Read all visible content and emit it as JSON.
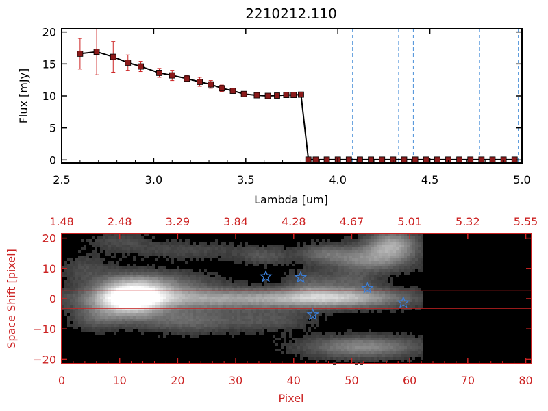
{
  "chart_data": [
    {
      "type": "line",
      "title": "2210212.110",
      "xlabel": "Lambda [um]",
      "ylabel": "Flux [mJy]",
      "xlim": [
        2.5,
        5.0
      ],
      "ylim": [
        -0.5,
        20.5
      ],
      "xticks": [
        2.5,
        3.0,
        3.5,
        4.0,
        4.5,
        5.0
      ],
      "xtick_labels": [
        "2.5",
        "3.0",
        "3.5",
        "4.0",
        "4.5",
        "5.0"
      ],
      "yticks": [
        0,
        5,
        10,
        15,
        20
      ],
      "ytick_labels": [
        "0",
        "5",
        "10",
        "15",
        "20"
      ],
      "grid": false,
      "series": [
        {
          "color": "#000000",
          "marker_color": "#8b1a1a",
          "error_color": "#cc2222",
          "x": [
            2.6,
            2.69,
            2.78,
            2.86,
            2.93,
            3.03,
            3.1,
            3.18,
            3.25,
            3.31,
            3.37,
            3.43,
            3.49,
            3.56,
            3.62,
            3.67,
            3.72,
            3.76,
            3.8,
            3.84,
            3.88,
            3.94,
            4.0,
            4.06,
            4.12,
            4.18,
            4.24,
            4.3,
            4.36,
            4.42,
            4.48,
            4.54,
            4.6,
            4.66,
            4.72,
            4.78,
            4.84,
            4.9,
            4.96
          ],
          "y": [
            16.6,
            16.9,
            16.1,
            15.2,
            14.6,
            13.6,
            13.2,
            12.7,
            12.2,
            11.8,
            11.2,
            10.8,
            10.3,
            10.1,
            10.0,
            10.05,
            10.15,
            10.15,
            10.2,
            0.05,
            0.05,
            0.05,
            0.05,
            0.05,
            0.05,
            0.05,
            0.05,
            0.05,
            0.05,
            0.05,
            0.05,
            0.05,
            0.05,
            0.05,
            0.05,
            0.05,
            0.05,
            0.05,
            0.05
          ],
          "yerr": [
            2.4,
            3.6,
            2.4,
            1.2,
            0.8,
            0.7,
            0.8,
            0.5,
            0.7,
            0.6,
            0.5,
            0.4,
            0.2,
            0.15,
            0.1,
            0.1,
            0.1,
            0.15,
            0.1,
            0,
            0,
            0,
            0,
            0,
            0,
            0,
            0,
            0,
            0,
            0,
            0,
            0,
            0,
            0,
            0,
            0,
            0,
            0,
            0
          ]
        }
      ],
      "vlines": {
        "x": [
          4.08,
          4.33,
          4.41,
          4.77,
          4.98
        ],
        "color": "#4a90d9",
        "style": "dashed"
      }
    },
    {
      "type": "heatmap",
      "xlabel": "Pixel",
      "ylabel": "Space Shift [pixel]",
      "xlim": [
        0,
        81
      ],
      "ylim": [
        -21.5,
        21.5
      ],
      "xticks": [
        0,
        10,
        20,
        30,
        40,
        50,
        60,
        70,
        80
      ],
      "xtick_labels": [
        "0",
        "10",
        "20",
        "30",
        "40",
        "50",
        "60",
        "70",
        "80"
      ],
      "yticks": [
        -20,
        -10,
        0,
        10,
        20
      ],
      "ytick_labels": [
        "−20",
        "−10",
        "0",
        "10",
        "20"
      ],
      "top_axis_ticks": [
        0,
        10,
        20,
        30,
        40,
        50,
        60,
        70,
        80
      ],
      "top_axis_labels": [
        "1.48",
        "2.48",
        "3.29",
        "3.84",
        "4.28",
        "4.67",
        "5.01",
        "5.32",
        "5.55"
      ],
      "colormap": "grayscale",
      "axis_color": "#cc2222",
      "hlines": {
        "y": [
          2.8,
          -3.2
        ],
        "color": "#cc2222"
      },
      "stars": {
        "color": "#3b7fd9",
        "points": [
          [
            35.2,
            7.3
          ],
          [
            41.2,
            7.0
          ],
          [
            43.3,
            -5.3
          ],
          [
            52.7,
            3.4
          ],
          [
            58.9,
            -1.3
          ]
        ]
      },
      "blobs": [
        {
          "x": 12,
          "y": 0,
          "sx": 4,
          "sy": 4,
          "amp": 1.0
        },
        {
          "x": 30,
          "y": 0,
          "sx": 18,
          "sy": 2.2,
          "amp": 0.55
        },
        {
          "x": 48,
          "y": 0.5,
          "sx": 7,
          "sy": 2.2,
          "amp": 0.45
        },
        {
          "x": 16,
          "y": 4.5,
          "sx": 7,
          "sy": 3,
          "amp": 0.35
        },
        {
          "x": 22,
          "y": -7,
          "sx": 6,
          "sy": 3,
          "amp": 0.3
        },
        {
          "x": 6,
          "y": -6,
          "sx": 3,
          "sy": 3,
          "amp": 0.25
        },
        {
          "x": 36,
          "y": -7,
          "sx": 5,
          "sy": 2.5,
          "amp": 0.2
        },
        {
          "x": 52,
          "y": -16,
          "sx": 7,
          "sy": 2.5,
          "amp": 0.45
        },
        {
          "x": 53,
          "y": 13,
          "sx": 5,
          "sy": 3,
          "amp": 0.45
        },
        {
          "x": 57,
          "y": 18,
          "sx": 3,
          "sy": 3,
          "amp": 0.55
        },
        {
          "x": 45,
          "y": 15,
          "sx": 3,
          "sy": 2,
          "amp": 0.25
        },
        {
          "x": 35,
          "y": 14,
          "sx": 3,
          "sy": 2,
          "amp": 0.2
        },
        {
          "x": 22,
          "y": 16,
          "sx": 8,
          "sy": 2,
          "amp": 0.15
        },
        {
          "x": 10,
          "y": 19,
          "sx": 4,
          "sy": 2,
          "amp": 0.15
        },
        {
          "x": 4,
          "y": 10,
          "sx": 3,
          "sy": 3,
          "amp": 0.15
        },
        {
          "x": 43,
          "y": 5,
          "sx": 3,
          "sy": 3,
          "amp": 0.2
        },
        {
          "x": 50,
          "y": 6,
          "sx": 3,
          "sy": 2,
          "amp": 0.2
        }
      ],
      "data_extent_x": [
        0,
        62
      ]
    }
  ]
}
